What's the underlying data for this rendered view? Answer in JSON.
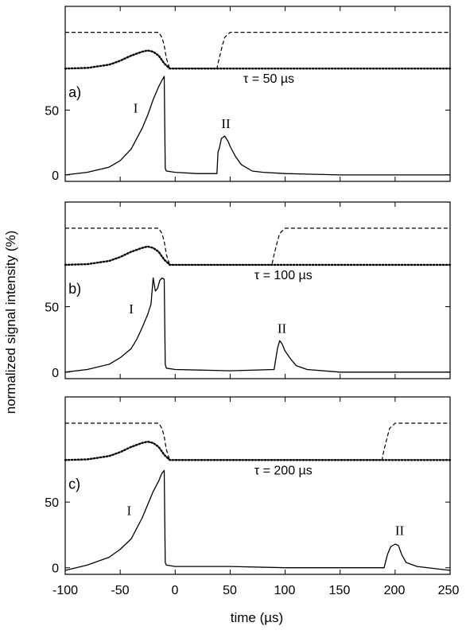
{
  "figure": {
    "ylabel": "normalized signal intensity (%)",
    "xlabel": "time (µs)",
    "x_ticks": [
      "-100",
      "-50",
      "0",
      "50",
      "100",
      "150",
      "200",
      "250"
    ]
  },
  "chart_data": [
    {
      "type": "line",
      "panel_label": "a)",
      "annotation": "τ = 50  µs",
      "peak_labels": [
        "I",
        "II"
      ],
      "y_ticks": [
        "0",
        "50"
      ],
      "xlim": [
        -100,
        250
      ],
      "ylim": [
        -5,
        130
      ],
      "x_ticks": [
        -100,
        -50,
        0,
        50,
        100,
        150,
        200,
        250
      ],
      "series": [
        {
          "style": "solid",
          "x": [
            -100,
            -80,
            -60,
            -50,
            -40,
            -35,
            -30,
            -25,
            -20,
            -15,
            -12,
            -10,
            -9,
            -8,
            0,
            20,
            38,
            39,
            40,
            42,
            45,
            48,
            50,
            55,
            60,
            70,
            80,
            100,
            150,
            200,
            250
          ],
          "y": [
            0,
            2,
            6,
            11,
            20,
            28,
            36,
            46,
            58,
            68,
            73,
            76,
            5,
            3,
            2,
            1,
            1,
            18,
            20,
            28,
            30,
            26,
            22,
            14,
            8,
            3,
            2,
            1,
            0,
            0,
            0
          ]
        },
        {
          "style": "dotted",
          "x": [
            -100,
            -80,
            -60,
            -50,
            -40,
            -30,
            -25,
            -20,
            -15,
            -10,
            -5,
            0,
            250
          ],
          "y": [
            82,
            82.5,
            85,
            88,
            92,
            95,
            96,
            95,
            92,
            86,
            82,
            82,
            82
          ]
        },
        {
          "style": "dashed",
          "x": [
            -100,
            -20,
            -15,
            -12,
            -10,
            -8,
            -5,
            0,
            38,
            40,
            43,
            45,
            50,
            250
          ],
          "y": [
            110,
            110,
            110,
            106,
            100,
            90,
            82,
            82,
            82,
            90,
            100,
            106,
            110,
            110
          ]
        }
      ]
    },
    {
      "type": "line",
      "panel_label": "b)",
      "annotation": "τ = 100  µs",
      "peak_labels": [
        "I",
        "II"
      ],
      "y_ticks": [
        "0",
        "50"
      ],
      "xlim": [
        -100,
        250
      ],
      "ylim": [
        -5,
        130
      ],
      "x_ticks": [
        -100,
        -50,
        0,
        50,
        100,
        150,
        200,
        250
      ],
      "series": [
        {
          "style": "solid",
          "x": [
            -100,
            -80,
            -60,
            -50,
            -40,
            -35,
            -30,
            -25,
            -22,
            -20,
            -18,
            -16,
            -14,
            -12,
            -10,
            -9,
            -8,
            0,
            50,
            90,
            93,
            95,
            97,
            100,
            105,
            110,
            120,
            150,
            200,
            250
          ],
          "y": [
            0,
            2,
            6,
            11,
            18,
            25,
            34,
            44,
            52,
            72,
            62,
            64,
            70,
            72,
            71,
            6,
            3,
            2,
            1,
            2,
            18,
            24,
            22,
            16,
            10,
            5,
            2,
            0,
            0,
            0
          ]
        },
        {
          "style": "dotted",
          "x": [
            -100,
            -80,
            -60,
            -50,
            -40,
            -30,
            -25,
            -20,
            -15,
            -10,
            -5,
            0,
            250
          ],
          "y": [
            82,
            82.5,
            85,
            88,
            92,
            95,
            96,
            95,
            92,
            86,
            82,
            82,
            82
          ]
        },
        {
          "style": "dashed",
          "x": [
            -100,
            -20,
            -15,
            -12,
            -10,
            -8,
            -5,
            0,
            88,
            90,
            93,
            95,
            100,
            250
          ],
          "y": [
            110,
            110,
            110,
            106,
            100,
            90,
            82,
            82,
            82,
            90,
            100,
            106,
            110,
            110
          ]
        }
      ]
    },
    {
      "type": "line",
      "panel_label": "c)",
      "annotation": "τ = 200  µs",
      "peak_labels": [
        "I",
        "II"
      ],
      "y_ticks": [
        "0",
        "50"
      ],
      "xlim": [
        -100,
        250
      ],
      "ylim": [
        -5,
        130
      ],
      "x_ticks": [
        -100,
        -50,
        0,
        50,
        100,
        150,
        200,
        250
      ],
      "series": [
        {
          "style": "solid",
          "x": [
            -100,
            -80,
            -60,
            -50,
            -40,
            -35,
            -30,
            -25,
            -20,
            -15,
            -12,
            -10,
            -9,
            -8,
            0,
            50,
            100,
            150,
            190,
            193,
            196,
            200,
            203,
            206,
            210,
            220,
            250
          ],
          "y": [
            -2,
            2,
            8,
            14,
            22,
            30,
            38,
            48,
            58,
            66,
            72,
            74,
            4,
            2,
            1,
            1,
            0,
            0,
            0,
            10,
            16,
            18,
            17,
            10,
            4,
            1,
            -2
          ]
        },
        {
          "style": "dotted",
          "x": [
            -100,
            -80,
            -60,
            -50,
            -40,
            -30,
            -25,
            -20,
            -15,
            -10,
            -5,
            0,
            250
          ],
          "y": [
            82,
            82.5,
            85,
            88,
            92,
            95,
            96,
            95,
            92,
            86,
            82,
            82,
            82
          ]
        },
        {
          "style": "dashed",
          "x": [
            -100,
            -20,
            -15,
            -12,
            -10,
            -8,
            -5,
            0,
            188,
            190,
            193,
            195,
            200,
            250
          ],
          "y": [
            110,
            110,
            110,
            106,
            100,
            90,
            82,
            82,
            82,
            90,
            100,
            106,
            110,
            110
          ]
        }
      ]
    }
  ]
}
